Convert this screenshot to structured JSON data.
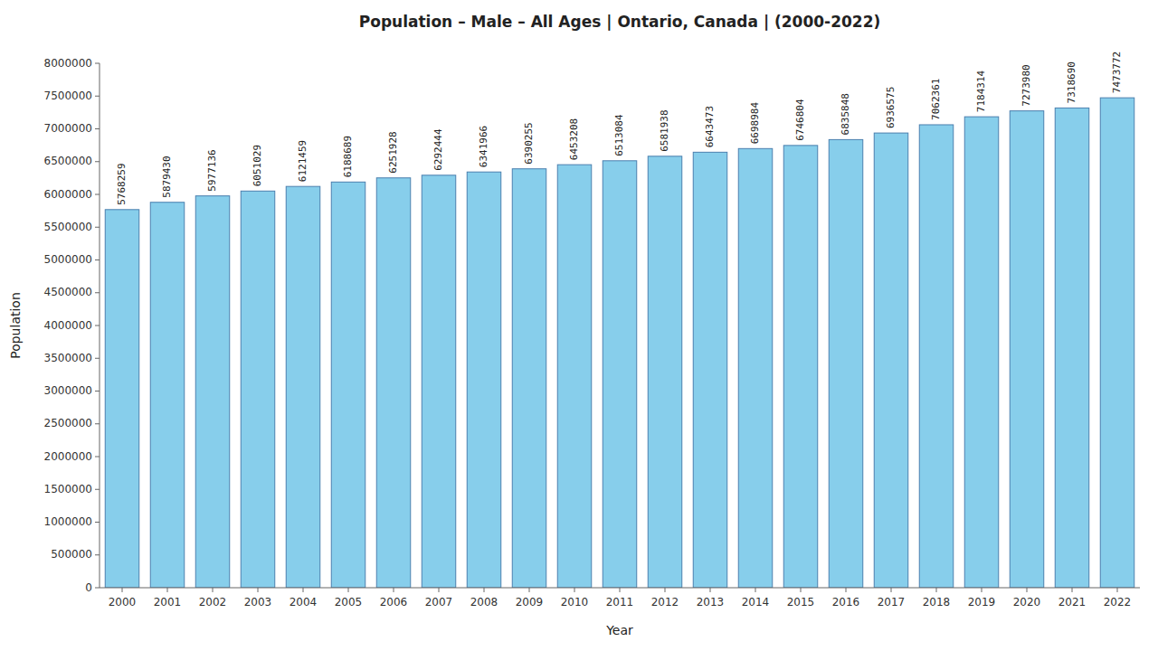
{
  "chart_data": {
    "type": "bar",
    "title": "Population – Male – All Ages | Ontario, Canada |  (2000-2022)",
    "x_label": "Year",
    "y_label": "Population",
    "categories": [
      "2000",
      "2001",
      "2002",
      "2003",
      "2004",
      "2005",
      "2006",
      "2007",
      "2008",
      "2009",
      "2010",
      "2011",
      "2012",
      "2013",
      "2014",
      "2015",
      "2016",
      "2017",
      "2018",
      "2019",
      "2020",
      "2021",
      "2022"
    ],
    "values": [
      5768259,
      5879430,
      5977136,
      6051029,
      6121459,
      6188689,
      6251928,
      6292444,
      6341966,
      6390255,
      6453208,
      6513084,
      6581938,
      6643473,
      6698984,
      6746804,
      6835848,
      6936575,
      7062361,
      7184314,
      7273980,
      7318690,
      7473772
    ],
    "color": "#87CEEB",
    "ylim": [
      0,
      8000000
    ],
    "yticks": [
      0,
      500000,
      1000000,
      1500000,
      2000000,
      2500000,
      3000000,
      3500000,
      4000000,
      4500000,
      5000000,
      5500000,
      6000000,
      6500000,
      7000000,
      7500000,
      8000000
    ],
    "grid": false,
    "data_labels": true
  }
}
